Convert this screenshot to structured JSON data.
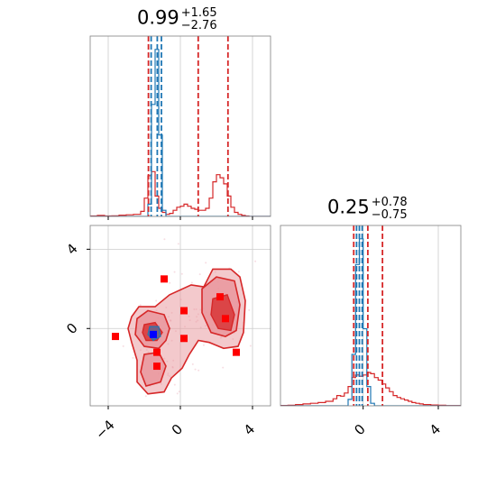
{
  "chart_data": [
    {
      "type": "histogram",
      "title": {
        "value": "0.99",
        "plus": "+1.65",
        "minus": "−2.76"
      },
      "xlim": [
        -5,
        5
      ],
      "grid": true,
      "bins": [
        -5.0,
        -4.6,
        -4.2,
        -3.8,
        -3.4,
        -3.0,
        -2.6,
        -2.2,
        -2.0,
        -1.8,
        -1.6,
        -1.4,
        -1.2,
        -1.0,
        -0.8,
        -0.6,
        -0.4,
        -0.2,
        0.0,
        0.2,
        0.4,
        0.6,
        0.8,
        1.0,
        1.2,
        1.4,
        1.6,
        1.8,
        2.0,
        2.2,
        2.4,
        2.6,
        2.8,
        3.0,
        3.2,
        3.4,
        3.6,
        3.8,
        4.2,
        4.6,
        5.0
      ],
      "series": [
        {
          "color": "#d62728",
          "counts": [
            0.2,
            0.5,
            0.2,
            0.3,
            0.6,
            0.8,
            1.0,
            2.5,
            9.0,
            20.0,
            22.0,
            10.0,
            4.0,
            2.0,
            1.0,
            1.5,
            3.0,
            4.5,
            5.0,
            6.0,
            5.0,
            4.0,
            3.5,
            3.0,
            3.0,
            4.0,
            9.0,
            17.0,
            20.5,
            19.0,
            16.0,
            10.0,
            4.5,
            2.0,
            1.0,
            0.5,
            0.2,
            0.0,
            0.0,
            0.0
          ]
        },
        {
          "color": "#1f77b4",
          "counts": [
            0,
            0,
            0,
            0,
            0,
            0,
            0,
            0,
            0,
            6.0,
            55.0,
            82.0,
            40.0,
            3.0,
            0,
            0,
            0,
            0,
            0,
            0,
            0,
            0,
            0,
            0,
            0,
            0,
            0,
            0,
            0,
            0,
            0,
            0,
            0,
            0,
            0,
            0,
            0,
            0,
            0,
            0
          ]
        }
      ],
      "quantile_lines": [
        {
          "x": -1.77,
          "color": "#d62728"
        },
        {
          "x": 0.99,
          "color": "#d62728"
        },
        {
          "x": 2.64,
          "color": "#d62728"
        },
        {
          "x": -1.62,
          "color": "#1f77b4"
        },
        {
          "x": -1.28,
          "color": "#1f77b4"
        },
        {
          "x": -1.05,
          "color": "#1f77b4"
        }
      ]
    },
    {
      "type": "histogram",
      "title": {
        "value": "0.25",
        "plus": "+0.78",
        "minus": "−0.75"
      },
      "xlim": [
        -4.4,
        5.2
      ],
      "xticks": [
        0,
        4
      ],
      "xtick_labels": [
        "0",
        "4"
      ],
      "grid": true,
      "bins": [
        -4.4,
        -4.0,
        -3.6,
        -3.2,
        -2.8,
        -2.4,
        -2.0,
        -1.6,
        -1.4,
        -1.2,
        -1.0,
        -0.8,
        -0.6,
        -0.4,
        -0.2,
        0.0,
        0.2,
        0.4,
        0.6,
        0.8,
        1.0,
        1.2,
        1.4,
        1.6,
        1.8,
        2.0,
        2.2,
        2.4,
        2.6,
        2.8,
        3.0,
        3.2,
        3.6,
        4.0,
        4.4,
        5.2
      ],
      "series": [
        {
          "color": "#d62728",
          "counts": [
            0.3,
            0.5,
            1.0,
            1.5,
            2.0,
            2.5,
            3.5,
            5.5,
            8.0,
            7.5,
            10.0,
            15.0,
            22.0,
            24.0,
            23.0,
            24.0,
            26.0,
            25.0,
            22.0,
            20.0,
            17.0,
            14.0,
            11.0,
            8.0,
            6.5,
            5.5,
            4.5,
            3.5,
            2.5,
            2.0,
            1.5,
            1.0,
            0.6,
            0.4,
            0.2
          ]
        },
        {
          "color": "#1f77b4",
          "counts": [
            0,
            0,
            0,
            0,
            0,
            0,
            0,
            0,
            0,
            0,
            0,
            5.0,
            40.0,
            110.0,
            130.0,
            60.0,
            15.0,
            2.0,
            0,
            0,
            0,
            0,
            0,
            0,
            0,
            0,
            0,
            0,
            0,
            0,
            0,
            0,
            0,
            0,
            0
          ]
        }
      ],
      "quantile_lines": [
        {
          "x": -0.5,
          "color": "#d62728"
        },
        {
          "x": 0.25,
          "color": "#d62728"
        },
        {
          "x": 1.03,
          "color": "#d62728"
        },
        {
          "x": -0.35,
          "color": "#1f77b4"
        },
        {
          "x": -0.2,
          "color": "#1f77b4"
        },
        {
          "x": -0.05,
          "color": "#1f77b4"
        }
      ]
    },
    {
      "type": "contour",
      "xlim": [
        -5,
        5
      ],
      "ylim": [
        -3.9,
        5.2
      ],
      "xticks": [
        -4,
        0,
        4
      ],
      "xtick_labels": [
        "−4",
        "0",
        "4"
      ],
      "yticks": [
        0,
        4
      ],
      "ytick_labels": [
        "0",
        "4"
      ],
      "grid": true,
      "red_points": [
        {
          "x": -0.9,
          "y": 2.5
        },
        {
          "x": 2.2,
          "y": 1.6
        },
        {
          "x": 0.2,
          "y": 0.9
        },
        {
          "x": 2.5,
          "y": 0.5
        },
        {
          "x": -3.6,
          "y": -0.4
        },
        {
          "x": 0.2,
          "y": -0.5
        },
        {
          "x": -1.3,
          "y": -1.2
        },
        {
          "x": 3.1,
          "y": -1.2
        },
        {
          "x": -1.3,
          "y": -1.9
        }
      ],
      "blue_points": [
        {
          "x": -1.5,
          "y": -0.3
        }
      ],
      "colors": {
        "red": "#d62728",
        "red_fill": "#e8939a",
        "blue": "#1f77b4"
      }
    }
  ]
}
